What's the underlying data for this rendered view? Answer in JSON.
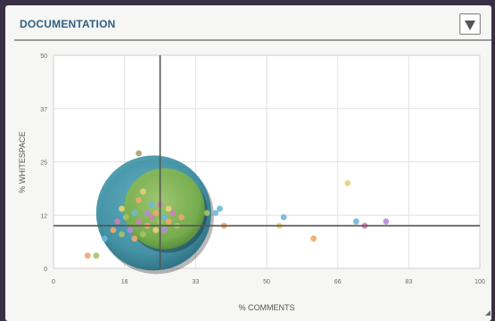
{
  "panel": {
    "title": "DOCUMENTATION",
    "menu_icon": "triangle-down-icon"
  },
  "chart_data": {
    "type": "scatter",
    "title": "",
    "xlabel": "% COMMENTS",
    "ylabel": "% WHITESPACE",
    "xlim": [
      0,
      100
    ],
    "ylim": [
      0,
      50
    ],
    "xticks": [
      "0",
      "16",
      "33",
      "50",
      "66",
      "83",
      "100"
    ],
    "yticks": [
      "0",
      "12",
      "25",
      "37",
      "50"
    ],
    "grid": true,
    "crosshair": {
      "x": 25,
      "y": 10
    },
    "bubbles": [
      {
        "x": 23.5,
        "y": 13,
        "r": 13.5,
        "color": "#3a8fa3"
      },
      {
        "x": 26,
        "y": 14,
        "r": 9.5,
        "color": "#7bb24a"
      }
    ],
    "points": [
      {
        "x": 8,
        "y": 3,
        "color": "#f0a86a"
      },
      {
        "x": 10,
        "y": 3,
        "color": "#a6c26a"
      },
      {
        "x": 20,
        "y": 27,
        "color": "#a6a36a"
      },
      {
        "x": 12,
        "y": 7,
        "color": "#6bb8d8"
      },
      {
        "x": 14,
        "y": 9,
        "color": "#f0a86a"
      },
      {
        "x": 15,
        "y": 11,
        "color": "#d07fb4"
      },
      {
        "x": 16,
        "y": 14,
        "color": "#e8d07a"
      },
      {
        "x": 17,
        "y": 12,
        "color": "#a6c26a"
      },
      {
        "x": 18,
        "y": 9,
        "color": "#b58ad9"
      },
      {
        "x": 19,
        "y": 13,
        "color": "#6bb8d8"
      },
      {
        "x": 20,
        "y": 16,
        "color": "#f0a86a"
      },
      {
        "x": 20,
        "y": 11,
        "color": "#d07fb4"
      },
      {
        "x": 21,
        "y": 18,
        "color": "#e8d07a"
      },
      {
        "x": 21,
        "y": 8,
        "color": "#a6c26a"
      },
      {
        "x": 22,
        "y": 13,
        "color": "#b58ad9"
      },
      {
        "x": 22,
        "y": 10,
        "color": "#f0a86a"
      },
      {
        "x": 23,
        "y": 15,
        "color": "#6bb8d8"
      },
      {
        "x": 23,
        "y": 12,
        "color": "#d07fb4"
      },
      {
        "x": 24,
        "y": 9,
        "color": "#e8d07a"
      },
      {
        "x": 24,
        "y": 13,
        "color": "#f0a86a"
      },
      {
        "x": 25,
        "y": 11,
        "color": "#a6c26a"
      },
      {
        "x": 25,
        "y": 15,
        "color": "#d07fb4"
      },
      {
        "x": 26,
        "y": 12,
        "color": "#6bb8d8"
      },
      {
        "x": 26,
        "y": 9,
        "color": "#b58ad9"
      },
      {
        "x": 27,
        "y": 14,
        "color": "#e8d07a"
      },
      {
        "x": 27,
        "y": 11,
        "color": "#f0a86a"
      },
      {
        "x": 28,
        "y": 13,
        "color": "#d07fb4"
      },
      {
        "x": 29,
        "y": 10,
        "color": "#a6c26a"
      },
      {
        "x": 30,
        "y": 12,
        "color": "#f0a86a"
      },
      {
        "x": 19,
        "y": 7,
        "color": "#f0a86a"
      },
      {
        "x": 16,
        "y": 8,
        "color": "#a6c26a"
      },
      {
        "x": 36,
        "y": 13,
        "color": "#a6c26a"
      },
      {
        "x": 38,
        "y": 13,
        "color": "#6bb8d8"
      },
      {
        "x": 39,
        "y": 14,
        "color": "#6bb8d8"
      },
      {
        "x": 40,
        "y": 10,
        "color": "#f0a86a"
      },
      {
        "x": 54,
        "y": 12,
        "color": "#6bb8d8"
      },
      {
        "x": 53,
        "y": 10,
        "color": "#e8d07a"
      },
      {
        "x": 61,
        "y": 7,
        "color": "#f0a86a"
      },
      {
        "x": 69,
        "y": 20,
        "color": "#e8d07a"
      },
      {
        "x": 71,
        "y": 11,
        "color": "#6bb8d8"
      },
      {
        "x": 73,
        "y": 10,
        "color": "#d07fb4"
      },
      {
        "x": 78,
        "y": 11,
        "color": "#b58ad9"
      }
    ]
  }
}
